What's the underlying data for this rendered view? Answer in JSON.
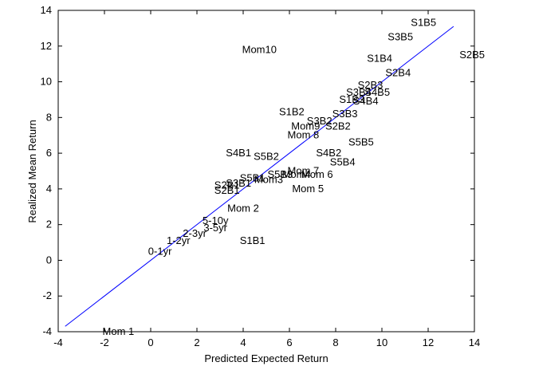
{
  "chart_data": {
    "type": "scatter",
    "title": "",
    "xlabel": "Predicted Expected Return",
    "ylabel": "Realized Mean Return",
    "xlim": [
      -4,
      14
    ],
    "ylim": [
      -4,
      14
    ],
    "x_ticks": [
      -4,
      -2,
      0,
      2,
      4,
      6,
      8,
      10,
      12,
      14
    ],
    "y_ticks": [
      -4,
      -2,
      0,
      2,
      4,
      6,
      8,
      10,
      12,
      14
    ],
    "grid": false,
    "line_color": "#0000ff",
    "fit_line": {
      "x": [
        -3.7,
        13.1
      ],
      "y": [
        -3.7,
        13.1
      ]
    },
    "points": [
      {
        "label": "S1B5",
        "x": 11.8,
        "y": 13.3
      },
      {
        "label": "S3B5",
        "x": 10.8,
        "y": 12.5
      },
      {
        "label": "S2B5",
        "x": 13.9,
        "y": 11.5
      },
      {
        "label": "Mom10",
        "x": 4.7,
        "y": 11.8
      },
      {
        "label": "S1B4",
        "x": 9.9,
        "y": 11.3
      },
      {
        "label": "S2B4",
        "x": 10.7,
        "y": 10.5
      },
      {
        "label": "S2B3",
        "x": 9.5,
        "y": 9.8
      },
      {
        "label": "S3B4",
        "x": 9.0,
        "y": 9.4
      },
      {
        "label": "S4B5",
        "x": 9.8,
        "y": 9.4
      },
      {
        "label": "S1B3",
        "x": 8.7,
        "y": 9.0
      },
      {
        "label": "S4B4",
        "x": 9.3,
        "y": 8.9
      },
      {
        "label": "S1B2",
        "x": 6.1,
        "y": 8.3
      },
      {
        "label": "S3B3",
        "x": 8.4,
        "y": 8.2
      },
      {
        "label": "S3B2",
        "x": 7.3,
        "y": 7.8
      },
      {
        "label": "Mom9",
        "x": 6.7,
        "y": 7.5
      },
      {
        "label": "S2B2",
        "x": 8.1,
        "y": 7.5
      },
      {
        "label": "Mom 8",
        "x": 6.6,
        "y": 7.0
      },
      {
        "label": "S5B5",
        "x": 9.1,
        "y": 6.6
      },
      {
        "label": "S4B1",
        "x": 3.8,
        "y": 6.0
      },
      {
        "label": "S5B2",
        "x": 5.0,
        "y": 5.8
      },
      {
        "label": "S4B2",
        "x": 7.7,
        "y": 6.0
      },
      {
        "label": "S5B4",
        "x": 8.3,
        "y": 5.5
      },
      {
        "label": "Mom 7",
        "x": 6.6,
        "y": 5.0
      },
      {
        "label": "Mom 6",
        "x": 7.2,
        "y": 4.8
      },
      {
        "label": "Mom4",
        "x": 6.3,
        "y": 4.8
      },
      {
        "label": "S5B3",
        "x": 5.6,
        "y": 4.8
      },
      {
        "label": "S5B1",
        "x": 4.4,
        "y": 4.6
      },
      {
        "label": "Mom3",
        "x": 5.1,
        "y": 4.5
      },
      {
        "label": "S3B1",
        "x": 3.8,
        "y": 4.3
      },
      {
        "label": "S2B1",
        "x": 3.3,
        "y": 4.2
      },
      {
        "label": "S2B1",
        "x": 3.3,
        "y": 3.9
      },
      {
        "label": "Mom 5",
        "x": 6.8,
        "y": 4.0
      },
      {
        "label": "Mom 2",
        "x": 4.0,
        "y": 2.9
      },
      {
        "label": "5-10y",
        "x": 2.8,
        "y": 2.2
      },
      {
        "label": "3-5yr",
        "x": 2.8,
        "y": 1.8
      },
      {
        "label": "2-3yr",
        "x": 1.9,
        "y": 1.5
      },
      {
        "label": "1-2yr",
        "x": 1.2,
        "y": 1.1
      },
      {
        "label": "S1B1",
        "x": 4.4,
        "y": 1.1
      },
      {
        "label": "0-1yr",
        "x": 0.4,
        "y": 0.5
      },
      {
        "label": "Mom 1",
        "x": -1.4,
        "y": -4.0
      }
    ]
  }
}
